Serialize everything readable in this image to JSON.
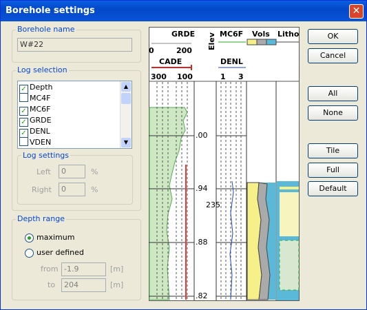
{
  "window": {
    "title": "Borehole settings"
  },
  "borehole_name": {
    "label": "Borehole name",
    "value": "W#22"
  },
  "log_selection": {
    "label": "Log selection",
    "items": [
      {
        "label": "Depth",
        "checked": true
      },
      {
        "label": "MC4F",
        "checked": false
      },
      {
        "label": "MC6F",
        "checked": true
      },
      {
        "label": "GRDE",
        "checked": true
      },
      {
        "label": "DENL",
        "checked": true
      },
      {
        "label": "VDEN",
        "checked": false
      }
    ],
    "log_settings": {
      "label": "Log settings",
      "left_label": "Left",
      "left_value": "0",
      "right_label": "Right",
      "right_value": "0",
      "unit": "%"
    }
  },
  "depth_range": {
    "label": "Depth range",
    "options": [
      {
        "label": "maximum",
        "selected": true
      },
      {
        "label": "user defined",
        "selected": false
      }
    ],
    "from_label": "from",
    "from_value": "-1.9",
    "to_label": "to",
    "to_value": "204",
    "unit": "[m]"
  },
  "preview": {
    "grde": "GRDE",
    "grde_min": "0",
    "grde_max": "200",
    "cade": "CADE",
    "cade_min": "300",
    "cade_max": "100",
    "elev": "Elev",
    "mc6f": "MC6F",
    "vols": "Vols",
    "litho": "Litho",
    "denl": "DENL",
    "denl_min": "1",
    "denl_max": "3",
    "depth_labels": [
      ".00",
      ".94",
      ".88",
      ".82"
    ],
    "track_note": "235"
  },
  "buttons": [
    "OK",
    "Cancel",
    "All",
    "None",
    "Tile",
    "Full",
    "Default"
  ]
}
